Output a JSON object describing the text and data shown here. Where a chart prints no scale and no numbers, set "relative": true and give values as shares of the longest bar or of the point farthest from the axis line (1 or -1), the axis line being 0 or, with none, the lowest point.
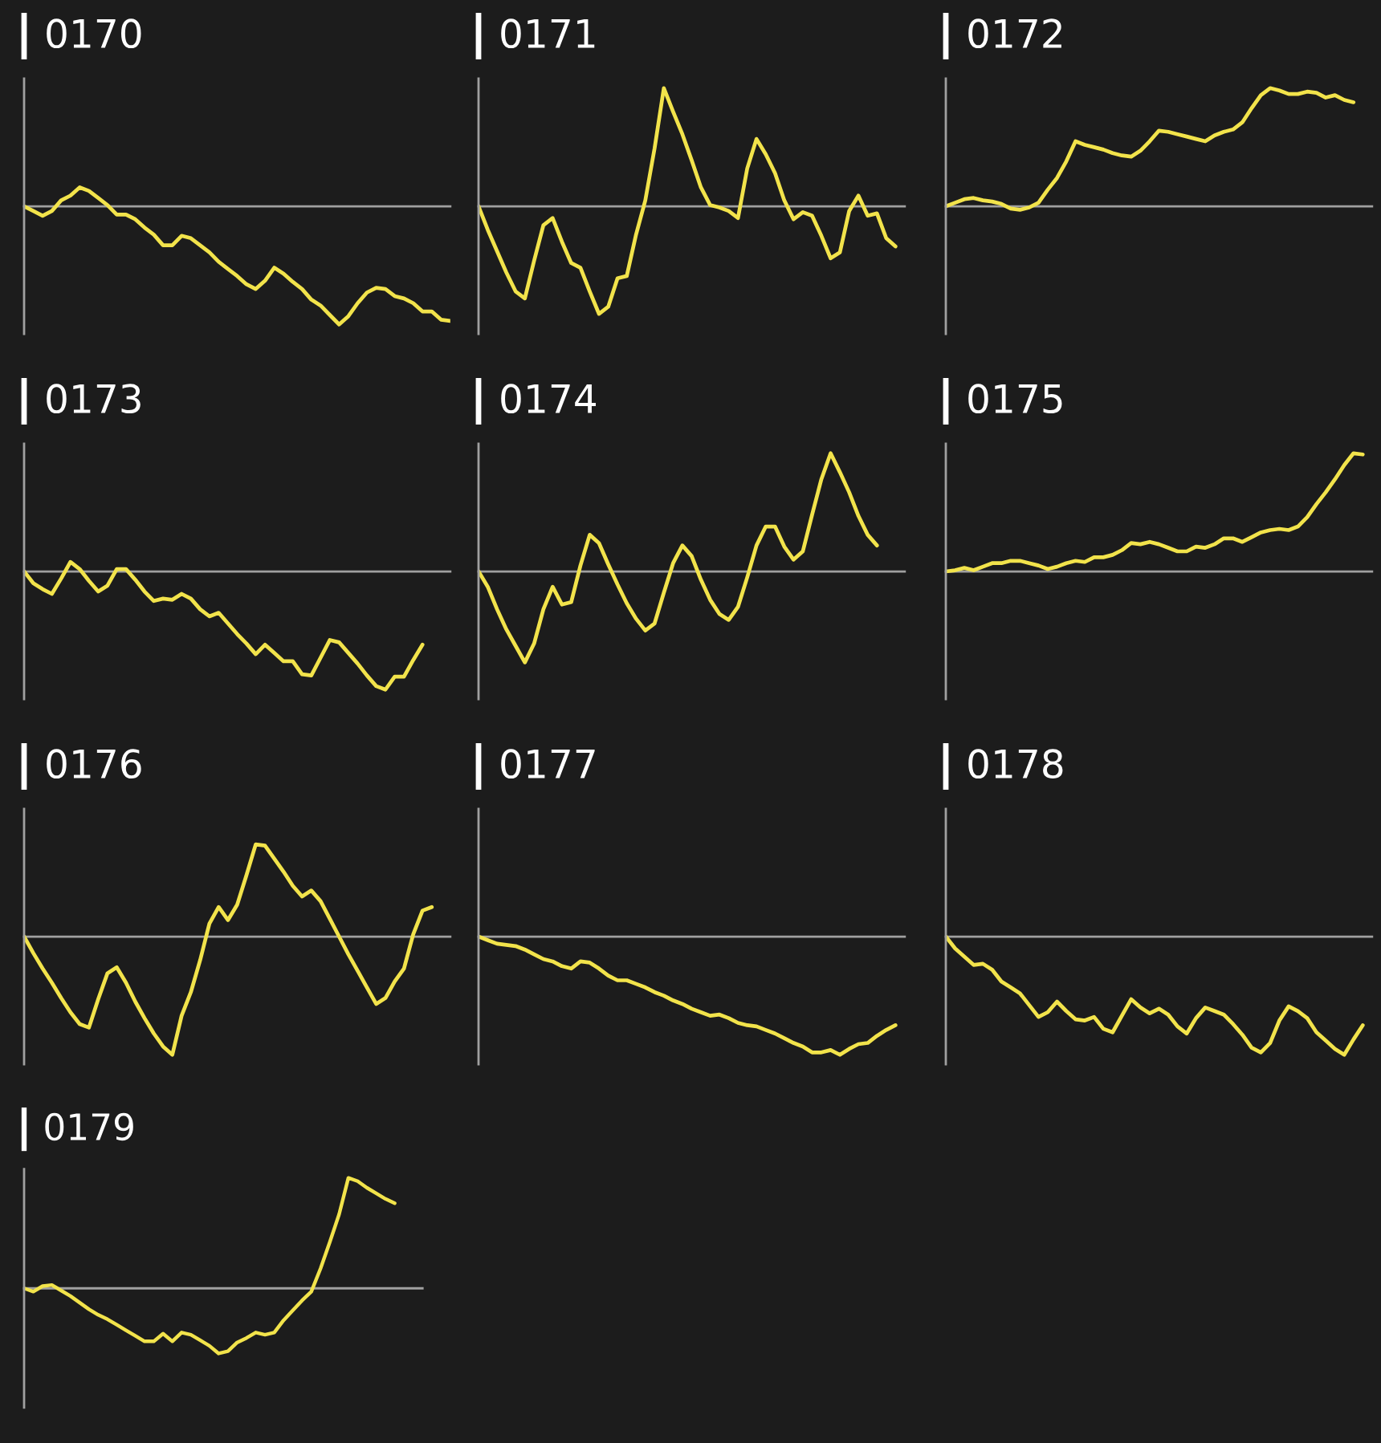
{
  "chart_data": [
    {
      "type": "line",
      "title": "0170",
      "relative": true,
      "color": "#f2e34b",
      "categories": [
        null,
        null,
        null,
        null,
        null,
        null,
        null,
        null,
        null,
        null,
        null,
        null,
        null,
        null,
        null,
        null,
        null,
        null,
        null,
        null,
        null,
        null,
        null,
        null,
        null,
        null,
        null,
        null,
        null,
        null,
        null,
        null,
        null,
        null,
        null,
        null,
        null,
        null,
        null,
        null,
        null,
        null,
        null,
        null,
        null,
        null,
        null
      ],
      "values": [
        0,
        -0.04,
        -0.08,
        -0.04,
        0.05,
        0.09,
        0.16,
        0.13,
        0.07,
        0.01,
        -0.07,
        -0.07,
        -0.11,
        -0.18,
        -0.24,
        -0.33,
        -0.33,
        -0.25,
        -0.27,
        -0.33,
        -0.39,
        -0.47,
        -0.53,
        -0.59,
        -0.66,
        -0.7,
        -0.63,
        -0.52,
        -0.57,
        -0.64,
        -0.7,
        -0.79,
        -0.84,
        -0.92,
        -1,
        -0.93,
        -0.82,
        -0.73,
        -0.69,
        -0.7,
        -0.76,
        -0.78,
        -0.82,
        -0.89,
        -0.89,
        -0.96,
        -0.97
      ]
    },
    {
      "type": "line",
      "title": "0171",
      "relative": true,
      "color": "#f2e34b",
      "categories": [
        null,
        null,
        null,
        null,
        null,
        null,
        null,
        null,
        null,
        null,
        null,
        null,
        null,
        null,
        null,
        null,
        null,
        null,
        null,
        null,
        null,
        null,
        null,
        null,
        null,
        null,
        null,
        null,
        null,
        null,
        null,
        null,
        null,
        null,
        null,
        null,
        null,
        null,
        null,
        null,
        null,
        null,
        null,
        null,
        null,
        null,
        null
      ],
      "values": [
        0,
        -0.2,
        -0.38,
        -0.56,
        -0.72,
        -0.78,
        -0.46,
        -0.16,
        -0.1,
        -0.3,
        -0.48,
        -0.52,
        -0.72,
        -0.91,
        -0.85,
        -0.61,
        -0.59,
        -0.24,
        0.05,
        0.49,
        1,
        0.8,
        0.61,
        0.39,
        0.16,
        0.01,
        -0.01,
        -0.04,
        -0.1,
        0.32,
        0.57,
        0.44,
        0.28,
        0.05,
        -0.11,
        -0.05,
        -0.08,
        -0.25,
        -0.44,
        -0.39,
        -0.04,
        0.09,
        -0.08,
        -0.06,
        -0.27,
        -0.34,
        null
      ]
    },
    {
      "type": "line",
      "title": "0172",
      "relative": true,
      "color": "#f2e34b",
      "categories": [
        null,
        null,
        null,
        null,
        null,
        null,
        null,
        null,
        null,
        null,
        null,
        null,
        null,
        null,
        null,
        null,
        null,
        null,
        null,
        null,
        null,
        null,
        null,
        null,
        null,
        null,
        null,
        null,
        null,
        null,
        null,
        null,
        null,
        null,
        null,
        null,
        null,
        null,
        null,
        null,
        null,
        null,
        null,
        null,
        null,
        null,
        null
      ],
      "values": [
        0,
        0.03,
        0.06,
        0.07,
        0.05,
        0.04,
        0.02,
        -0.02,
        -0.03,
        -0.01,
        0.03,
        0.14,
        0.24,
        0.38,
        0.55,
        0.52,
        0.5,
        0.48,
        0.45,
        0.43,
        0.42,
        0.47,
        0.55,
        0.64,
        0.63,
        0.61,
        0.59,
        0.57,
        0.55,
        0.6,
        0.63,
        0.65,
        0.71,
        0.83,
        0.94,
        1,
        0.98,
        0.95,
        0.95,
        0.97,
        0.96,
        0.92,
        0.94,
        0.9,
        0.88,
        null,
        null
      ]
    },
    {
      "type": "line",
      "title": "0173",
      "relative": true,
      "color": "#f2e34b",
      "categories": [
        null,
        null,
        null,
        null,
        null,
        null,
        null,
        null,
        null,
        null,
        null,
        null,
        null,
        null,
        null,
        null,
        null,
        null,
        null,
        null,
        null,
        null,
        null,
        null,
        null,
        null,
        null,
        null,
        null,
        null,
        null,
        null,
        null,
        null,
        null,
        null,
        null,
        null,
        null,
        null,
        null,
        null,
        null,
        null,
        null,
        null,
        null
      ],
      "values": [
        0,
        -0.1,
        -0.15,
        -0.19,
        -0.06,
        0.08,
        0.02,
        -0.08,
        -0.17,
        -0.12,
        0.02,
        0.02,
        -0.07,
        -0.17,
        -0.25,
        -0.23,
        -0.24,
        -0.19,
        -0.23,
        -0.32,
        -0.38,
        -0.35,
        -0.44,
        -0.53,
        -0.61,
        -0.7,
        -0.62,
        -0.69,
        -0.76,
        -0.76,
        -0.87,
        -0.88,
        -0.73,
        -0.58,
        -0.6,
        -0.69,
        -0.78,
        -0.88,
        -0.97,
        -1,
        -0.89,
        -0.89,
        -0.75,
        -0.62,
        null,
        null,
        null
      ]
    },
    {
      "type": "line",
      "title": "0174",
      "relative": true,
      "color": "#f2e34b",
      "categories": [
        null,
        null,
        null,
        null,
        null,
        null,
        null,
        null,
        null,
        null,
        null,
        null,
        null,
        null,
        null,
        null,
        null,
        null,
        null,
        null,
        null,
        null,
        null,
        null,
        null,
        null,
        null,
        null,
        null,
        null,
        null,
        null,
        null,
        null,
        null,
        null,
        null,
        null,
        null,
        null,
        null,
        null,
        null,
        null,
        null,
        null,
        null
      ],
      "values": [
        0,
        -0.13,
        -0.32,
        -0.49,
        -0.63,
        -0.77,
        -0.61,
        -0.32,
        -0.13,
        -0.28,
        -0.26,
        0.05,
        0.31,
        0.24,
        0.06,
        -0.11,
        -0.27,
        -0.4,
        -0.5,
        -0.44,
        -0.18,
        0.07,
        0.22,
        0.13,
        -0.07,
        -0.24,
        -0.36,
        -0.41,
        -0.3,
        -0.05,
        0.22,
        0.38,
        0.38,
        0.21,
        0.1,
        0.17,
        0.48,
        0.78,
        1,
        0.84,
        0.67,
        0.47,
        0.31,
        0.22,
        null,
        null,
        null
      ]
    },
    {
      "type": "line",
      "title": "0175",
      "relative": true,
      "color": "#f2e34b",
      "categories": [
        null,
        null,
        null,
        null,
        null,
        null,
        null,
        null,
        null,
        null,
        null,
        null,
        null,
        null,
        null,
        null,
        null,
        null,
        null,
        null,
        null,
        null,
        null,
        null,
        null,
        null,
        null,
        null,
        null,
        null,
        null,
        null,
        null,
        null,
        null,
        null,
        null,
        null,
        null,
        null,
        null,
        null,
        null,
        null,
        null,
        null,
        null
      ],
      "values": [
        0,
        0.01,
        0.03,
        0.01,
        0.04,
        0.07,
        0.07,
        0.09,
        0.09,
        0.07,
        0.05,
        0.02,
        0.04,
        0.07,
        0.09,
        0.08,
        0.12,
        0.12,
        0.14,
        0.18,
        0.24,
        0.23,
        0.25,
        0.23,
        0.2,
        0.17,
        0.17,
        0.21,
        0.2,
        0.23,
        0.28,
        0.28,
        0.25,
        0.29,
        0.33,
        0.35,
        0.36,
        0.35,
        0.38,
        0.46,
        0.57,
        0.67,
        0.78,
        0.9,
        1,
        0.99,
        null
      ]
    },
    {
      "type": "line",
      "title": "0176",
      "relative": true,
      "color": "#f2e34b",
      "categories": [
        null,
        null,
        null,
        null,
        null,
        null,
        null,
        null,
        null,
        null,
        null,
        null,
        null,
        null,
        null,
        null,
        null,
        null,
        null,
        null,
        null,
        null,
        null,
        null,
        null,
        null,
        null,
        null,
        null,
        null,
        null,
        null,
        null,
        null,
        null,
        null,
        null,
        null,
        null,
        null,
        null,
        null,
        null,
        null,
        null,
        null,
        null
      ],
      "values": [
        0,
        -0.14,
        -0.27,
        -0.39,
        -0.52,
        -0.64,
        -0.74,
        -0.77,
        -0.53,
        -0.31,
        -0.26,
        -0.39,
        -0.55,
        -0.69,
        -0.82,
        -0.93,
        -1,
        -0.67,
        -0.47,
        -0.2,
        0.11,
        0.25,
        0.14,
        0.27,
        0.52,
        0.78,
        0.77,
        0.66,
        0.55,
        0.43,
        0.34,
        0.39,
        0.3,
        0.15,
        0,
        -0.15,
        -0.29,
        -0.43,
        -0.57,
        -0.52,
        -0.38,
        -0.27,
        0.02,
        0.22,
        0.25,
        null,
        null
      ]
    },
    {
      "type": "line",
      "title": "0177",
      "relative": true,
      "color": "#f2e34b",
      "categories": [
        null,
        null,
        null,
        null,
        null,
        null,
        null,
        null,
        null,
        null,
        null,
        null,
        null,
        null,
        null,
        null,
        null,
        null,
        null,
        null,
        null,
        null,
        null,
        null,
        null,
        null,
        null,
        null,
        null,
        null,
        null,
        null,
        null,
        null,
        null,
        null,
        null,
        null,
        null,
        null,
        null,
        null,
        null,
        null,
        null,
        null,
        null
      ],
      "values": [
        0,
        -0.03,
        -0.06,
        -0.07,
        -0.08,
        -0.11,
        -0.15,
        -0.19,
        -0.21,
        -0.25,
        -0.27,
        -0.21,
        -0.22,
        -0.27,
        -0.33,
        -0.37,
        -0.37,
        -0.4,
        -0.43,
        -0.47,
        -0.5,
        -0.54,
        -0.57,
        -0.61,
        -0.64,
        -0.67,
        -0.66,
        -0.69,
        -0.73,
        -0.75,
        -0.76,
        -0.79,
        -0.82,
        -0.86,
        -0.9,
        -0.93,
        -0.98,
        -0.98,
        -0.96,
        -1,
        -0.95,
        -0.91,
        -0.9,
        -0.84,
        -0.79,
        -0.75,
        null
      ]
    },
    {
      "type": "line",
      "title": "0178",
      "relative": true,
      "color": "#f2e34b",
      "categories": [
        null,
        null,
        null,
        null,
        null,
        null,
        null,
        null,
        null,
        null,
        null,
        null,
        null,
        null,
        null,
        null,
        null,
        null,
        null,
        null,
        null,
        null,
        null,
        null,
        null,
        null,
        null,
        null,
        null,
        null,
        null,
        null,
        null,
        null,
        null,
        null,
        null,
        null,
        null,
        null,
        null,
        null,
        null,
        null,
        null,
        null,
        null
      ],
      "values": [
        0,
        -0.1,
        -0.17,
        -0.24,
        -0.23,
        -0.28,
        -0.38,
        -0.43,
        -0.48,
        -0.58,
        -0.68,
        -0.64,
        -0.55,
        -0.63,
        -0.7,
        -0.71,
        -0.68,
        -0.78,
        -0.81,
        -0.67,
        -0.53,
        -0.6,
        -0.65,
        -0.61,
        -0.66,
        -0.76,
        -0.82,
        -0.69,
        -0.6,
        -0.63,
        -0.66,
        -0.74,
        -0.83,
        -0.94,
        -0.98,
        -0.9,
        -0.71,
        -0.59,
        -0.63,
        -0.69,
        -0.81,
        -0.88,
        -0.95,
        -1,
        -0.87,
        -0.75,
        null
      ]
    },
    {
      "type": "line",
      "title": "0179",
      "relative": true,
      "color": "#f2e34b",
      "categories": [
        null,
        null,
        null,
        null,
        null,
        null,
        null,
        null,
        null,
        null,
        null,
        null,
        null,
        null,
        null,
        null,
        null,
        null,
        null,
        null,
        null,
        null,
        null,
        null,
        null,
        null,
        null,
        null,
        null,
        null,
        null,
        null,
        null,
        null,
        null,
        null,
        null,
        null,
        null,
        null,
        null,
        null,
        null,
        null
      ],
      "values": [
        0,
        -0.03,
        0.02,
        0.03,
        -0.02,
        -0.07,
        -0.13,
        -0.19,
        -0.24,
        -0.28,
        -0.33,
        -0.38,
        -0.43,
        -0.48,
        -0.48,
        -0.41,
        -0.48,
        -0.4,
        -0.42,
        -0.47,
        -0.52,
        -0.59,
        -0.57,
        -0.49,
        -0.45,
        -0.4,
        -0.42,
        -0.4,
        -0.29,
        -0.2,
        -0.11,
        -0.03,
        0.18,
        0.42,
        0.67,
        1,
        0.97,
        0.91,
        0.86,
        0.81,
        0.77,
        null,
        null,
        null
      ]
    }
  ]
}
